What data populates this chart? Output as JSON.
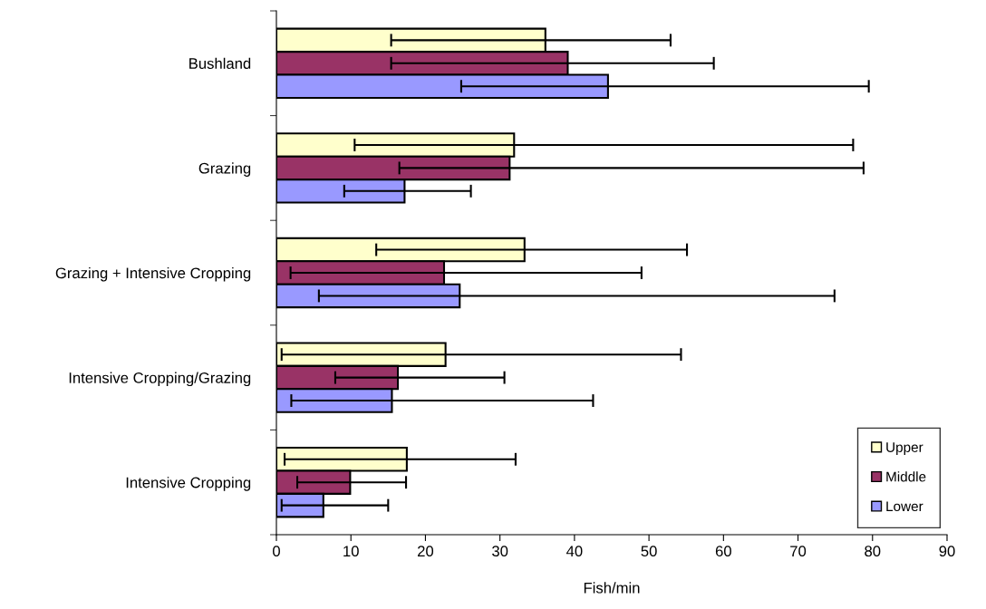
{
  "chart_data": {
    "type": "bar",
    "orientation": "horizontal",
    "xlabel": "Fish/min",
    "categories": [
      "Bushland",
      "Grazing",
      "Grazing + Intensive Cropping",
      "Intensive Cropping/Grazing",
      "Intensive Cropping"
    ],
    "series": [
      {
        "name": "Upper",
        "color": "#ffffcc",
        "values": [
          36.1,
          31.9,
          33.3,
          22.7,
          17.5
        ],
        "errors": [
          [
            15.4,
            52.9
          ],
          [
            10.5,
            77.4
          ],
          [
            13.4,
            55.1
          ],
          [
            0.7,
            54.3
          ],
          [
            1.1,
            32.1
          ]
        ]
      },
      {
        "name": "Middle",
        "color": "#993366",
        "values": [
          39.1,
          31.3,
          22.5,
          16.3,
          9.9
        ],
        "errors": [
          [
            15.4,
            58.7
          ],
          [
            16.5,
            78.8
          ],
          [
            1.9,
            49.0
          ],
          [
            7.9,
            30.6
          ],
          [
            2.8,
            17.4
          ]
        ]
      },
      {
        "name": "Lower",
        "color": "#9999ff",
        "values": [
          44.5,
          17.2,
          24.6,
          15.5,
          6.3
        ],
        "errors": [
          [
            24.8,
            79.5
          ],
          [
            9.1,
            26.1
          ],
          [
            5.7,
            74.9
          ],
          [
            2.0,
            42.5
          ],
          [
            0.7,
            15.0
          ]
        ]
      }
    ],
    "xlim": [
      0,
      90
    ],
    "xticks": [
      0,
      10,
      20,
      30,
      40,
      50,
      60,
      70,
      80,
      90
    ],
    "grid": false,
    "legend": "bottom right"
  }
}
